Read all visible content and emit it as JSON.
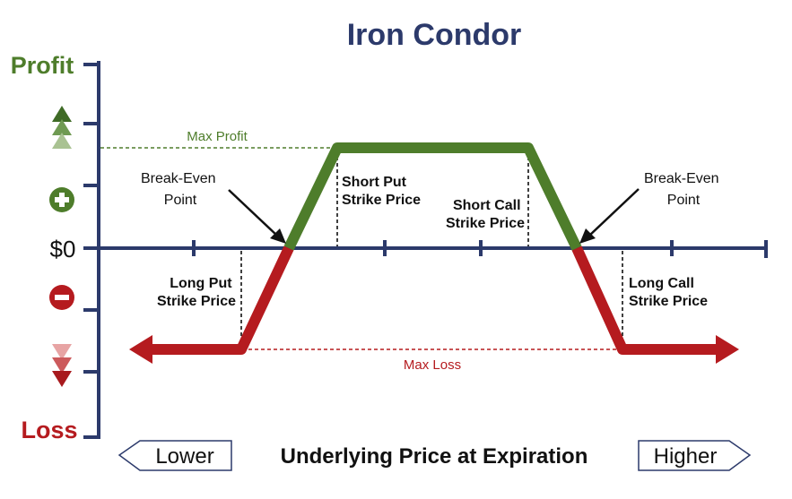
{
  "title": "Iron Condor",
  "axes": {
    "y_top_label": "Profit",
    "y_bottom_label": "Loss",
    "zero_label": "$0",
    "x_label": "Underlying Price at Expiration",
    "lower_label": "Lower",
    "higher_label": "Higher"
  },
  "annotations": {
    "max_profit": "Max Profit",
    "max_loss": "Max Loss",
    "break_even_left": [
      "Break-Even",
      "Point"
    ],
    "break_even_right": [
      "Break-Even",
      "Point"
    ],
    "short_put": [
      "Short Put",
      "Strike Price"
    ],
    "short_call": [
      "Short Call",
      "Strike Price"
    ],
    "long_put": [
      "Long Put",
      "Strike Price"
    ],
    "long_call": [
      "Long Call",
      "Strike Price"
    ]
  },
  "icons": {
    "plus": "plus-circle-icon",
    "minus": "minus-circle-icon",
    "profit": "triple-up-triangle-icon",
    "loss": "triple-down-triangle-icon"
  },
  "colors": {
    "axis": "#2c3a6b",
    "profit": "#4e7d2b",
    "loss": "#b51b1f",
    "title": "#2c3a6b",
    "text": "#111111"
  }
}
